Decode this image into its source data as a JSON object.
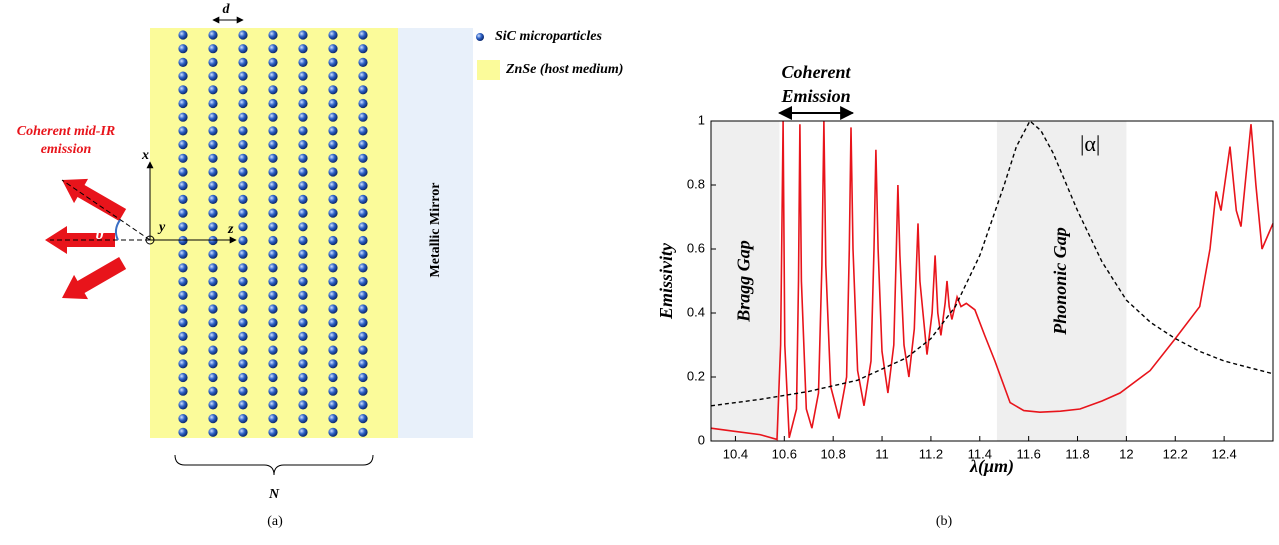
{
  "panel_a": {
    "spacing_label": "d",
    "legend": [
      "SiC microparticles",
      "ZnSe (host medium)"
    ],
    "emission_label": [
      "Coherent mid-IR",
      "emission"
    ],
    "axes": {
      "x": "x",
      "y": "y",
      "z": "z"
    },
    "angle": "ϑ",
    "mirror": "Metallic Mirror",
    "count_label": "N",
    "caption": "(a)"
  },
  "chart_data": {
    "type": "line",
    "caption": "(b)",
    "ylabel": "Emissivity",
    "xlabel": "λ(μm)",
    "xlim": [
      10.3,
      12.6
    ],
    "ylim": [
      0,
      1
    ],
    "xticks": [
      10.4,
      10.6,
      10.8,
      11,
      11.2,
      11.4,
      11.6,
      11.8,
      12,
      12.2,
      12.4
    ],
    "yticks": [
      0,
      0.2,
      0.4,
      0.6,
      0.8,
      1
    ],
    "shaded_regions": [
      {
        "label": "Bragg Gap",
        "x": [
          10.3,
          10.58
        ]
      },
      {
        "label": "Phononic Gap",
        "x": [
          11.47,
          12.0
        ]
      }
    ],
    "annotation": {
      "label": [
        "Coherent",
        "Emission"
      ],
      "x": [
        10.58,
        10.88
      ]
    },
    "series": [
      {
        "color": "#e8141b",
        "x": [
          10.3,
          10.4,
          10.5,
          10.57,
          10.585,
          10.595,
          10.602,
          10.62,
          10.65,
          10.658,
          10.664,
          10.67,
          10.69,
          10.713,
          10.74,
          10.754,
          10.762,
          10.77,
          10.79,
          10.824,
          10.855,
          10.866,
          10.873,
          10.881,
          10.9,
          10.926,
          10.955,
          10.967,
          10.975,
          10.984,
          11.0,
          11.024,
          11.048,
          11.058,
          11.065,
          11.073,
          11.09,
          11.11,
          11.132,
          11.141,
          11.147,
          11.155,
          11.184,
          11.205,
          11.217,
          11.228,
          11.241,
          11.258,
          11.266,
          11.275,
          11.286,
          11.307,
          11.323,
          11.345,
          11.38,
          11.42,
          11.462,
          11.524,
          11.58,
          11.646,
          11.73,
          11.81,
          11.9,
          11.974,
          12.097,
          12.2,
          12.3,
          12.342,
          12.367,
          12.387,
          12.424,
          12.45,
          12.469,
          12.51,
          12.53,
          12.555,
          12.6
        ],
        "values": [
          0.04,
          0.03,
          0.02,
          0.005,
          0.3,
          1.0,
          0.3,
          0.01,
          0.1,
          0.5,
          0.99,
          0.5,
          0.1,
          0.04,
          0.15,
          0.55,
          1.0,
          0.55,
          0.17,
          0.07,
          0.2,
          0.6,
          0.98,
          0.6,
          0.22,
          0.11,
          0.25,
          0.6,
          0.91,
          0.6,
          0.28,
          0.15,
          0.3,
          0.58,
          0.8,
          0.58,
          0.3,
          0.2,
          0.35,
          0.55,
          0.68,
          0.5,
          0.27,
          0.4,
          0.58,
          0.4,
          0.33,
          0.43,
          0.5,
          0.42,
          0.38,
          0.45,
          0.42,
          0.43,
          0.41,
          0.33,
          0.25,
          0.12,
          0.095,
          0.09,
          0.093,
          0.1,
          0.125,
          0.15,
          0.22,
          0.32,
          0.42,
          0.6,
          0.78,
          0.72,
          0.92,
          0.72,
          0.67,
          0.99,
          0.8,
          0.6,
          0.68
        ]
      },
      {
        "name": "|α|",
        "color": "#000000",
        "dashed": true,
        "x": [
          10.3,
          10.5,
          10.7,
          10.9,
          11.1,
          11.2,
          11.3,
          11.4,
          11.5,
          11.55,
          11.605,
          11.65,
          11.7,
          11.8,
          11.9,
          12.0,
          12.1,
          12.2,
          12.3,
          12.4,
          12.5,
          12.6
        ],
        "values": [
          0.11,
          0.13,
          0.155,
          0.19,
          0.26,
          0.32,
          0.42,
          0.58,
          0.8,
          0.92,
          1.0,
          0.97,
          0.9,
          0.72,
          0.56,
          0.44,
          0.37,
          0.32,
          0.28,
          0.25,
          0.23,
          0.21
        ]
      }
    ]
  }
}
